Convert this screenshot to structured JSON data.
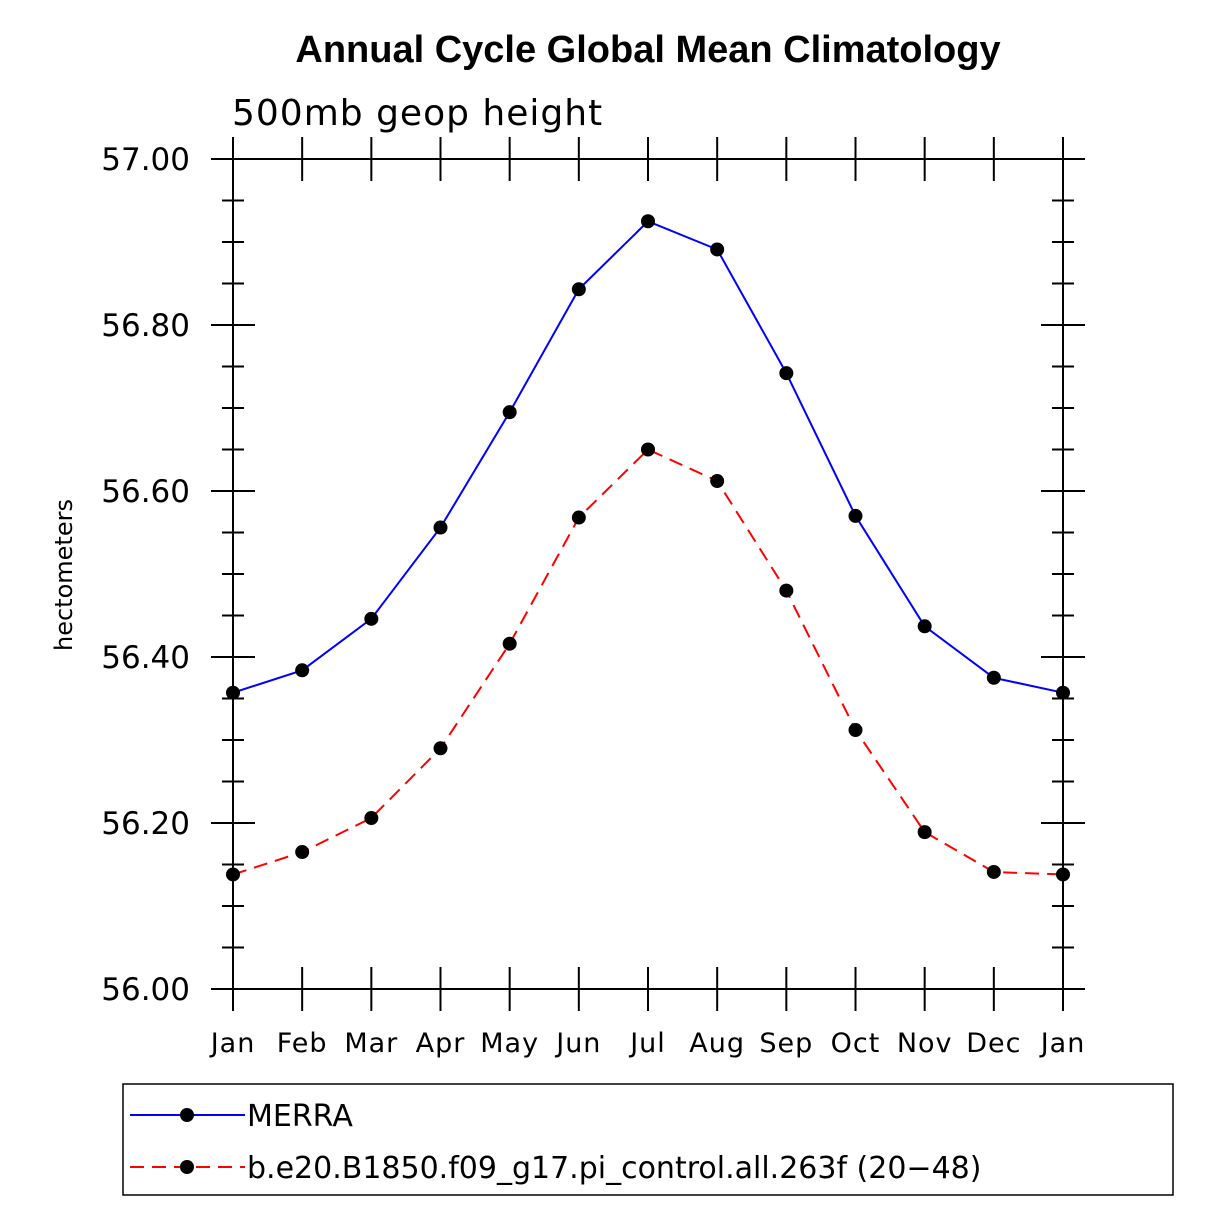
{
  "chart_data": {
    "type": "line",
    "title": "Annual Cycle Global Mean Climatology",
    "subtitle": "500mb geop height",
    "ylabel": "hectometers",
    "xlabel": "",
    "categories": [
      "Jan",
      "Feb",
      "Mar",
      "Apr",
      "May",
      "Jun",
      "Jul",
      "Aug",
      "Sep",
      "Oct",
      "Nov",
      "Dec",
      "Jan"
    ],
    "ylim": [
      56.0,
      57.0
    ],
    "yticks": [
      "56.00",
      "56.20",
      "56.40",
      "56.60",
      "56.80",
      "57.00"
    ],
    "grid": false,
    "legend_position": "bottom",
    "series": [
      {
        "name": "MERRA",
        "color": "#0000ff",
        "line_style": "solid",
        "marker": "filled-circle",
        "values": [
          56.357,
          56.384,
          56.446,
          56.556,
          56.695,
          56.843,
          56.925,
          56.891,
          56.742,
          56.57,
          56.437,
          56.375,
          56.357
        ]
      },
      {
        "name": "b.e20.B1850.f09_g17.pi_control.all.263f (20−48)",
        "color": "#ff0000",
        "line_style": "dashed",
        "marker": "filled-circle",
        "values": [
          56.138,
          56.165,
          56.206,
          56.29,
          56.416,
          56.568,
          56.65,
          56.612,
          56.48,
          56.312,
          56.189,
          56.141,
          56.138
        ]
      }
    ]
  }
}
